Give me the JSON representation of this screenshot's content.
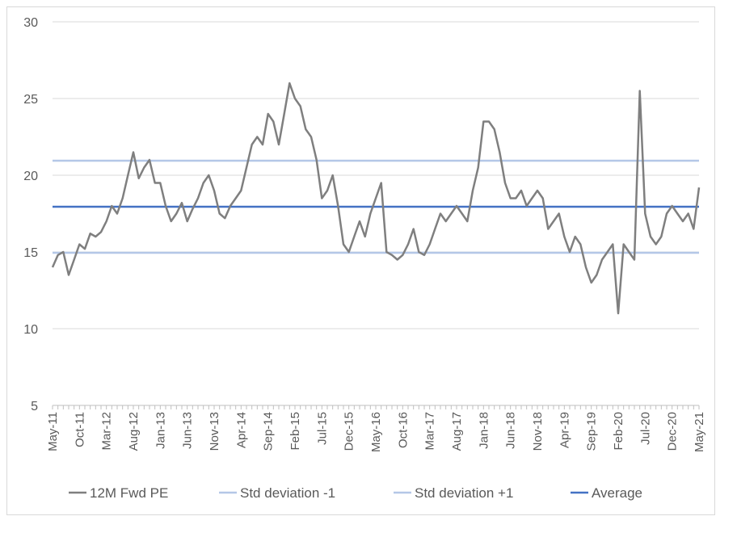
{
  "chart_data": {
    "type": "line",
    "title": "",
    "xlabel": "",
    "ylabel": "",
    "ylim": [
      5,
      30
    ],
    "y_ticks": [
      5,
      10,
      15,
      20,
      25,
      30
    ],
    "x_range": [
      "2011-05",
      "2021-05"
    ],
    "x_tick_labels": [
      "May-11",
      "Oct-11",
      "Mar-12",
      "Aug-12",
      "Jan-13",
      "Jun-13",
      "Nov-13",
      "Apr-14",
      "Sep-14",
      "Feb-15",
      "Jul-15",
      "Dec-15",
      "May-16",
      "Oct-16",
      "Mar-17",
      "Aug-17",
      "Jan-18",
      "Jun-18",
      "Nov-18",
      "Apr-19",
      "Sep-19",
      "Feb-20",
      "Jul-20",
      "Dec-20",
      "May-21"
    ],
    "grid": "horizontal",
    "legend_position": "bottom",
    "series": [
      {
        "name": "12M Fwd PE",
        "color": "#7f7f7f",
        "x": [
          "2011-05",
          "2011-06",
          "2011-07",
          "2011-08",
          "2011-09",
          "2011-10",
          "2011-11",
          "2011-12",
          "2012-01",
          "2012-02",
          "2012-03",
          "2012-04",
          "2012-05",
          "2012-06",
          "2012-07",
          "2012-08",
          "2012-09",
          "2012-10",
          "2012-11",
          "2012-12",
          "2013-01",
          "2013-02",
          "2013-03",
          "2013-04",
          "2013-05",
          "2013-06",
          "2013-07",
          "2013-08",
          "2013-09",
          "2013-10",
          "2013-11",
          "2013-12",
          "2014-01",
          "2014-02",
          "2014-03",
          "2014-04",
          "2014-05",
          "2014-06",
          "2014-07",
          "2014-08",
          "2014-09",
          "2014-10",
          "2014-11",
          "2014-12",
          "2015-01",
          "2015-02",
          "2015-03",
          "2015-04",
          "2015-05",
          "2015-06",
          "2015-07",
          "2015-08",
          "2015-09",
          "2015-10",
          "2015-11",
          "2015-12",
          "2016-01",
          "2016-02",
          "2016-03",
          "2016-04",
          "2016-05",
          "2016-06",
          "2016-07",
          "2016-08",
          "2016-09",
          "2016-10",
          "2016-11",
          "2016-12",
          "2017-01",
          "2017-02",
          "2017-03",
          "2017-04",
          "2017-05",
          "2017-06",
          "2017-07",
          "2017-08",
          "2017-09",
          "2017-10",
          "2017-11",
          "2017-12",
          "2018-01",
          "2018-02",
          "2018-03",
          "2018-04",
          "2018-05",
          "2018-06",
          "2018-07",
          "2018-08",
          "2018-09",
          "2018-10",
          "2018-11",
          "2018-12",
          "2019-01",
          "2019-02",
          "2019-03",
          "2019-04",
          "2019-05",
          "2019-06",
          "2019-07",
          "2019-08",
          "2019-09",
          "2019-10",
          "2019-11",
          "2019-12",
          "2020-01",
          "2020-02",
          "2020-03",
          "2020-04",
          "2020-05",
          "2020-06",
          "2020-07",
          "2020-08",
          "2020-09",
          "2020-10",
          "2020-11",
          "2020-12",
          "2021-01",
          "2021-02",
          "2021-03",
          "2021-04",
          "2021-05"
        ],
        "values": [
          14.0,
          14.8,
          15.0,
          13.5,
          14.5,
          15.5,
          15.2,
          16.2,
          16.0,
          16.3,
          17.0,
          18.0,
          17.5,
          18.5,
          20.0,
          21.5,
          19.8,
          20.5,
          21.0,
          19.5,
          19.5,
          18.0,
          17.0,
          17.5,
          18.2,
          17.0,
          17.8,
          18.5,
          19.5,
          20.0,
          19.0,
          17.5,
          17.2,
          18.0,
          18.5,
          19.0,
          20.5,
          22.0,
          22.5,
          22.0,
          24.0,
          23.5,
          22.0,
          24.0,
          26.0,
          25.0,
          24.5,
          23.0,
          22.5,
          21.0,
          18.5,
          19.0,
          20.0,
          18.0,
          15.5,
          15.0,
          16.0,
          17.0,
          16.0,
          17.5,
          18.5,
          19.5,
          15.0,
          14.8,
          14.5,
          14.8,
          15.5,
          16.5,
          15.0,
          14.8,
          15.5,
          16.5,
          17.5,
          17.0,
          17.5,
          18.0,
          17.5,
          17.0,
          19.0,
          20.5,
          23.5,
          23.5,
          23.0,
          21.5,
          19.5,
          18.5,
          18.5,
          19.0,
          18.0,
          18.5,
          19.0,
          18.5,
          16.5,
          17.0,
          17.5,
          16.0,
          15.0,
          16.0,
          15.5,
          14.0,
          13.0,
          13.5,
          14.5,
          15.0,
          15.5,
          11.0,
          15.5,
          15.0,
          14.5,
          25.5,
          17.5,
          16.0,
          15.5,
          16.0,
          17.5,
          18.0,
          17.5,
          17.0,
          17.5,
          16.5,
          19.2
        ]
      },
      {
        "name": "Std deviation -1",
        "color": "#b4c7e7",
        "value": 14.95
      },
      {
        "name": "Std deviation +1",
        "color": "#b4c7e7",
        "value": 20.95
      },
      {
        "name": "Average",
        "color": "#4472c4",
        "value": 17.95
      }
    ]
  }
}
